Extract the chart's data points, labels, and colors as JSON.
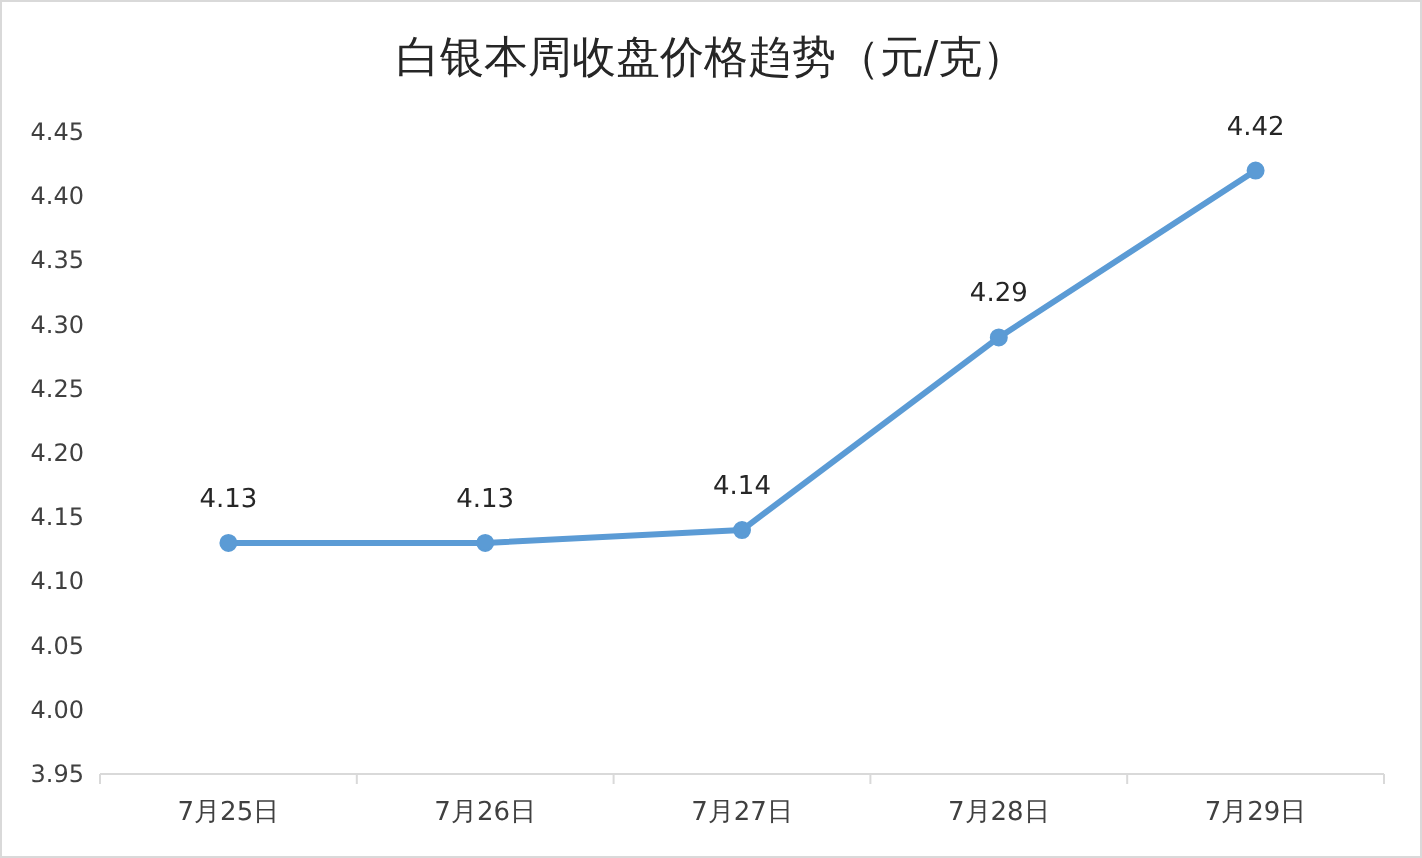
{
  "chart_data": {
    "type": "line",
    "title": "白银本周收盘价格趋势（元/克）",
    "categories": [
      "7月25日",
      "7月26日",
      "7月27日",
      "7月28日",
      "7月29日"
    ],
    "series": [
      {
        "color": "#5b9bd5",
        "values": [
          4.13,
          4.13,
          4.14,
          4.29,
          4.42
        ]
      }
    ],
    "ylim": [
      3.95,
      4.45
    ],
    "yticks": [
      {
        "value": 3.95,
        "label": "3.95"
      },
      {
        "value": 4.0,
        "label": "4.00"
      },
      {
        "value": 4.05,
        "label": "4.05"
      },
      {
        "value": 4.1,
        "label": "4.10"
      },
      {
        "value": 4.15,
        "label": "4.15"
      },
      {
        "value": 4.2,
        "label": "4.20"
      },
      {
        "value": 4.25,
        "label": "4.25"
      },
      {
        "value": 4.3,
        "label": "4.30"
      },
      {
        "value": 4.35,
        "label": "4.35"
      },
      {
        "value": 4.4,
        "label": "4.40"
      },
      {
        "value": 4.45,
        "label": "4.45"
      }
    ],
    "data_labels": true,
    "marker": "circle",
    "line_style": "solid",
    "grid": false
  }
}
